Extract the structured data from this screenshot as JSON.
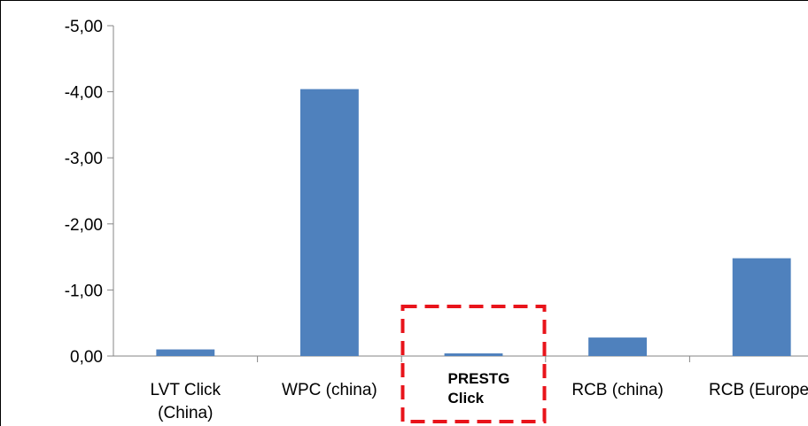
{
  "chart_data": {
    "type": "bar",
    "categories": [
      [
        "LVT Click",
        "(China)"
      ],
      [
        "WPC (china)"
      ],
      [
        "PRESTG",
        "Click"
      ],
      [
        "RCB (china)"
      ],
      [
        "RCB (Europe)"
      ]
    ],
    "values": [
      -0.1,
      -4.04,
      -0.04,
      -0.28,
      -1.48
    ],
    "y_ticks": [
      "-5,00",
      "-4,00",
      "-3,00",
      "-2,00",
      "-1,00",
      "0,00"
    ],
    "ylim": [
      0,
      -5
    ],
    "y_axis": "inverted",
    "bar_color": "#4F81BD",
    "highlight": {
      "category_index": 2,
      "style": "dashed-box",
      "color": "#E8141B",
      "label_weight": "bold"
    },
    "title": "",
    "xlabel": "",
    "ylabel": "",
    "grid": false,
    "legend": false
  }
}
